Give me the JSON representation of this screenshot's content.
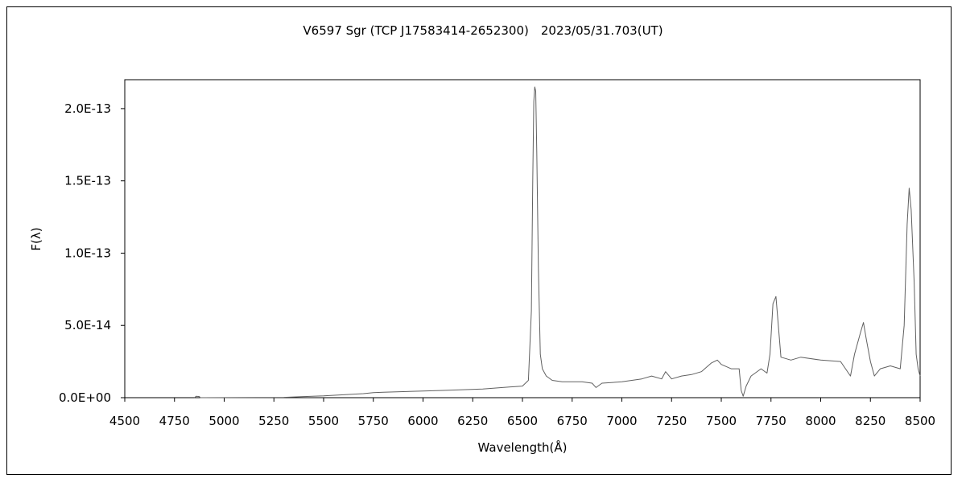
{
  "chart_data": {
    "type": "line",
    "title": "V6597 Sgr (TCP J17583414-2652300)　2023/05/31.703(UT)",
    "xlabel": "Wavelength(Å)",
    "ylabel": "F(λ)",
    "xlim": [
      4500,
      8500
    ],
    "ylim": [
      0,
      2.2e-13
    ],
    "x_ticks": [
      4500,
      4750,
      5000,
      5250,
      5500,
      5750,
      6000,
      6250,
      6500,
      6750,
      7000,
      7250,
      7500,
      7750,
      8000,
      8250,
      8500
    ],
    "x_tick_labels": [
      "4500",
      "4750",
      "5000",
      "5250",
      "5500",
      "5750",
      "6000",
      "6250",
      "6500",
      "6750",
      "7000",
      "7250",
      "7500",
      "7750",
      "8000",
      "8250",
      "8500"
    ],
    "y_ticks": [
      0,
      5e-14,
      1e-13,
      1.5e-13,
      2e-13
    ],
    "y_tick_labels": [
      "0.0E+00",
      "5.0E-14",
      "1.0E-13",
      "1.5E-13",
      "2.0E-13"
    ],
    "grid": false,
    "legend": "none",
    "series": [
      {
        "color": "#606060",
        "points": [
          [
            4850,
            0
          ],
          [
            4860,
            1e-15
          ],
          [
            4875,
            8e-16
          ],
          [
            4880,
            0
          ],
          [
            5300,
            2e-16
          ],
          [
            5400,
            8e-16
          ],
          [
            5500,
            1.2e-15
          ],
          [
            5600,
            2e-15
          ],
          [
            5700,
            2.8e-15
          ],
          [
            5750,
            3.5e-15
          ],
          [
            5800,
            3.8e-15
          ],
          [
            5900,
            4.2e-15
          ],
          [
            6000,
            4.6e-15
          ],
          [
            6100,
            5e-15
          ],
          [
            6200,
            5.5e-15
          ],
          [
            6300,
            6e-15
          ],
          [
            6400,
            7e-15
          ],
          [
            6500,
            8e-15
          ],
          [
            6530,
            1.2e-14
          ],
          [
            6545,
            6e-14
          ],
          [
            6552,
            1.5e-13
          ],
          [
            6557,
            2.05e-13
          ],
          [
            6562,
            2.15e-13
          ],
          [
            6567,
            2.12e-13
          ],
          [
            6572,
            1.7e-13
          ],
          [
            6580,
            9e-14
          ],
          [
            6590,
            3e-14
          ],
          [
            6600,
            2e-14
          ],
          [
            6620,
            1.5e-14
          ],
          [
            6650,
            1.2e-14
          ],
          [
            6700,
            1.1e-14
          ],
          [
            6800,
            1.1e-14
          ],
          [
            6850,
            1e-14
          ],
          [
            6870,
            7e-15
          ],
          [
            6900,
            1e-14
          ],
          [
            7000,
            1.1e-14
          ],
          [
            7100,
            1.3e-14
          ],
          [
            7150,
            1.5e-14
          ],
          [
            7200,
            1.3e-14
          ],
          [
            7220,
            1.8e-14
          ],
          [
            7250,
            1.3e-14
          ],
          [
            7300,
            1.5e-14
          ],
          [
            7350,
            1.6e-14
          ],
          [
            7400,
            1.8e-14
          ],
          [
            7450,
            2.4e-14
          ],
          [
            7480,
            2.6e-14
          ],
          [
            7500,
            2.3e-14
          ],
          [
            7550,
            2e-14
          ],
          [
            7590,
            2e-14
          ],
          [
            7600,
            5e-15
          ],
          [
            7610,
            1e-15
          ],
          [
            7625,
            8e-15
          ],
          [
            7650,
            1.5e-14
          ],
          [
            7700,
            2e-14
          ],
          [
            7730,
            1.7e-14
          ],
          [
            7745,
            3e-14
          ],
          [
            7760,
            6.5e-14
          ],
          [
            7775,
            7e-14
          ],
          [
            7790,
            4.5e-14
          ],
          [
            7800,
            2.8e-14
          ],
          [
            7850,
            2.6e-14
          ],
          [
            7900,
            2.8e-14
          ],
          [
            8000,
            2.6e-14
          ],
          [
            8100,
            2.5e-14
          ],
          [
            8150,
            1.5e-14
          ],
          [
            8170,
            3e-14
          ],
          [
            8200,
            4.5e-14
          ],
          [
            8215,
            5.2e-14
          ],
          [
            8230,
            4e-14
          ],
          [
            8250,
            2.5e-14
          ],
          [
            8270,
            1.5e-14
          ],
          [
            8300,
            2e-14
          ],
          [
            8350,
            2.2e-14
          ],
          [
            8400,
            2e-14
          ],
          [
            8420,
            5e-14
          ],
          [
            8435,
            1.2e-13
          ],
          [
            8445,
            1.45e-13
          ],
          [
            8455,
            1.3e-13
          ],
          [
            8470,
            8e-14
          ],
          [
            8480,
            3e-14
          ],
          [
            8490,
            2e-14
          ],
          [
            8500,
            1.5e-14
          ]
        ]
      }
    ]
  }
}
